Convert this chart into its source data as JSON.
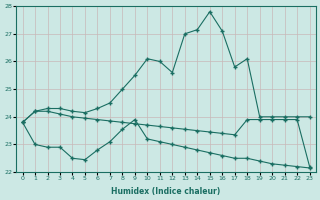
{
  "xlabel": "Humidex (Indice chaleur)",
  "background_color": "#cce8e4",
  "line_color": "#1a6e62",
  "xlim": [
    -0.5,
    23.5
  ],
  "ylim": [
    22,
    28
  ],
  "yticks": [
    22,
    23,
    24,
    25,
    26,
    27,
    28
  ],
  "xticks": [
    0,
    1,
    2,
    3,
    4,
    5,
    6,
    7,
    8,
    9,
    10,
    11,
    12,
    13,
    14,
    15,
    16,
    17,
    18,
    19,
    20,
    21,
    22,
    23
  ],
  "line1_x": [
    0,
    1,
    2,
    3,
    4,
    5,
    6,
    7,
    8,
    9,
    10,
    11,
    12,
    13,
    14,
    15,
    16,
    17,
    18,
    19,
    20,
    21,
    22,
    23
  ],
  "line1_y": [
    23.8,
    24.2,
    24.3,
    24.3,
    24.2,
    24.15,
    24.3,
    24.5,
    25.0,
    25.5,
    26.1,
    26.0,
    25.6,
    27.0,
    27.15,
    27.8,
    27.1,
    25.8,
    26.1,
    24.0,
    24.0,
    24.0,
    24.0,
    24.0
  ],
  "line2_x": [
    0,
    1,
    2,
    3,
    4,
    5,
    6,
    7,
    8,
    9,
    10,
    11,
    12,
    13,
    14,
    15,
    16,
    17,
    18,
    19,
    20,
    21,
    22,
    23
  ],
  "line2_y": [
    23.8,
    24.2,
    24.2,
    24.1,
    24.0,
    23.95,
    23.9,
    23.85,
    23.8,
    23.75,
    23.7,
    23.65,
    23.6,
    23.55,
    23.5,
    23.45,
    23.4,
    23.35,
    23.9,
    23.9,
    23.9,
    23.9,
    23.9,
    22.2
  ],
  "line3_x": [
    0,
    1,
    2,
    3,
    4,
    5,
    6,
    7,
    8,
    9,
    10,
    11,
    12,
    13,
    14,
    15,
    16,
    17,
    18,
    19,
    20,
    21,
    22,
    23
  ],
  "line3_y": [
    23.8,
    23.0,
    22.9,
    22.9,
    22.5,
    22.45,
    22.8,
    23.1,
    23.55,
    23.9,
    23.2,
    23.1,
    23.0,
    22.9,
    22.8,
    22.7,
    22.6,
    22.5,
    22.5,
    22.4,
    22.3,
    22.25,
    22.2,
    22.15
  ]
}
